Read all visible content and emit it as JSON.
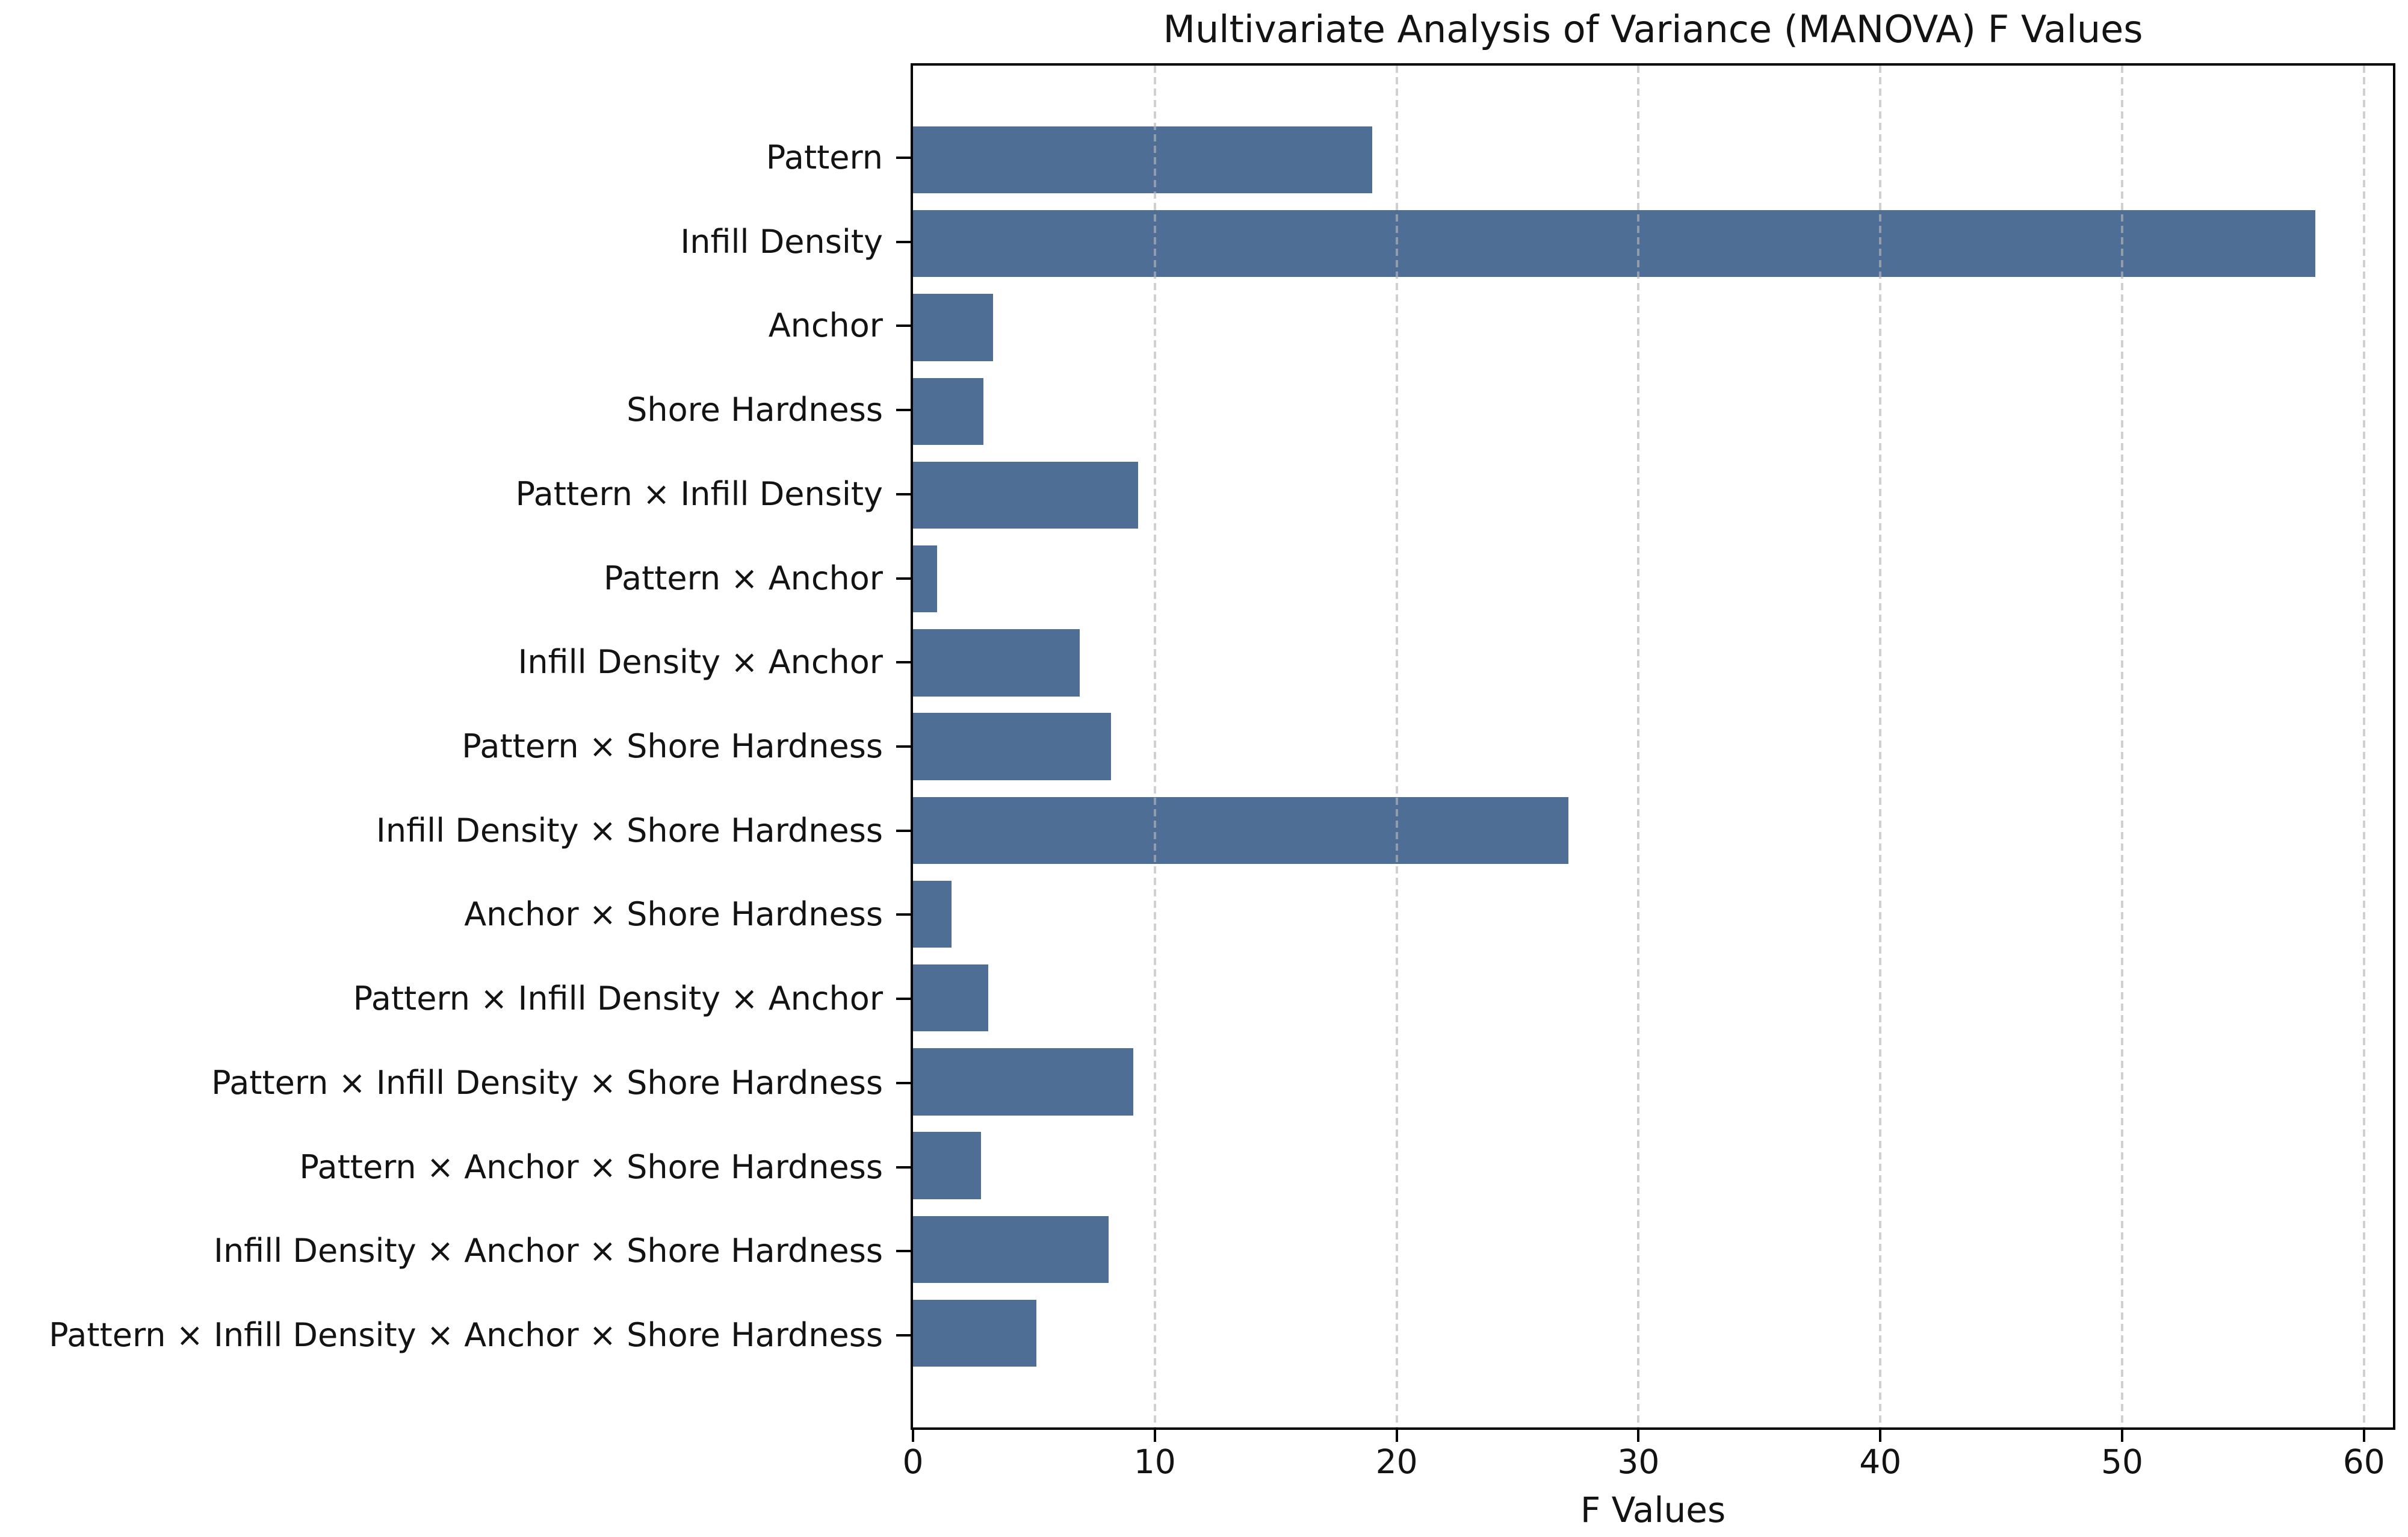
{
  "figure": {
    "background": "#ffffff"
  },
  "chart_data": {
    "type": "bar",
    "orientation": "horizontal",
    "title": "Multivariate Analysis of Variance (MANOVA) F Values",
    "xlabel": "F Values",
    "ylabel": "",
    "categories": [
      "Pattern",
      "Infill Density",
      "Anchor",
      "Shore Hardness",
      "Pattern × Infill Density",
      "Pattern × Anchor",
      "Infill Density × Anchor",
      "Pattern × Shore Hardness",
      "Infill Density × Shore Hardness",
      "Anchor × Shore Hardness",
      "Pattern × Infill Density × Anchor",
      "Pattern × Infill Density × Shore Hardness",
      "Pattern × Anchor × Shore Hardness",
      "Infill Density × Anchor × Shore Hardness",
      "Pattern × Infill Density × Anchor × Shore Hardness"
    ],
    "values": [
      19.0,
      58.0,
      3.3,
      2.9,
      9.3,
      1.0,
      6.9,
      8.2,
      27.1,
      1.6,
      3.1,
      9.1,
      2.8,
      8.1,
      5.1
    ],
    "x_ticks": [
      0,
      10,
      20,
      30,
      40,
      50,
      60
    ],
    "xlim": [
      0,
      61.2
    ],
    "bar_color": "#4E6E96",
    "grid": "vertical-dashed",
    "grid_color": "#b6b6b6",
    "legend": "none"
  }
}
